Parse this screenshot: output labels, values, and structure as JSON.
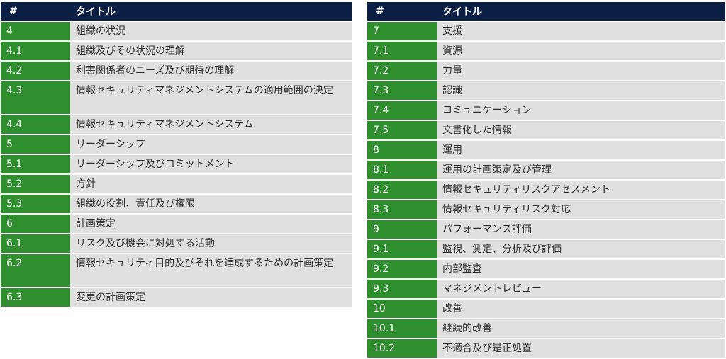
{
  "header": {
    "num": "#",
    "title": "タイトル"
  },
  "left_rows": [
    {
      "num": "4",
      "title": "組織の状況"
    },
    {
      "num": "4.1",
      "title": "組織及びその状況の理解"
    },
    {
      "num": "4.2",
      "title": "利害関係者のニーズ及び期待の理解"
    },
    {
      "num": "4.3",
      "title": "情報セキュリティマネジメントシステムの適用範囲の決定"
    },
    {
      "num": "4.4",
      "title": "情報セキュリティマネジメントシステム"
    },
    {
      "num": "5",
      "title": "リーダーシップ"
    },
    {
      "num": "5.1",
      "title": "リーダーシップ及びコミットメント"
    },
    {
      "num": "5.2",
      "title": "方針"
    },
    {
      "num": "5.3",
      "title": "組織の役割、責任及び権限"
    },
    {
      "num": "6",
      "title": "計画策定"
    },
    {
      "num": "6.1",
      "title": "リスク及び機会に対処する活動"
    },
    {
      "num": "6.2",
      "title": "情報セキュリティ目的及びそれを達成するための計画策定"
    },
    {
      "num": "6.3",
      "title": "変更の計画策定"
    }
  ],
  "right_rows": [
    {
      "num": "7",
      "title": "支援"
    },
    {
      "num": "7.1",
      "title": "資源"
    },
    {
      "num": "7.2",
      "title": "力量"
    },
    {
      "num": "7.3",
      "title": "認識"
    },
    {
      "num": "7.4",
      "title": "コミュニケーション"
    },
    {
      "num": "7.5",
      "title": "文書化した情報"
    },
    {
      "num": "8",
      "title": "運用"
    },
    {
      "num": "8.1",
      "title": "運用の計画策定及び管理"
    },
    {
      "num": "8.2",
      "title": "情報セキュリティリスクアセスメント"
    },
    {
      "num": "8.3",
      "title": "情報セキュリティリスク対応"
    },
    {
      "num": "9",
      "title": "パフォーマンス評価"
    },
    {
      "num": "9.1",
      "title": "監視、測定、分析及び評価"
    },
    {
      "num": "9.2",
      "title": "内部監査"
    },
    {
      "num": "9.3",
      "title": "マネジメントレビュー"
    },
    {
      "num": "10",
      "title": "改善"
    },
    {
      "num": "10.1",
      "title": "継続的改善"
    },
    {
      "num": "10.2",
      "title": "不適合及び是正処置"
    }
  ]
}
